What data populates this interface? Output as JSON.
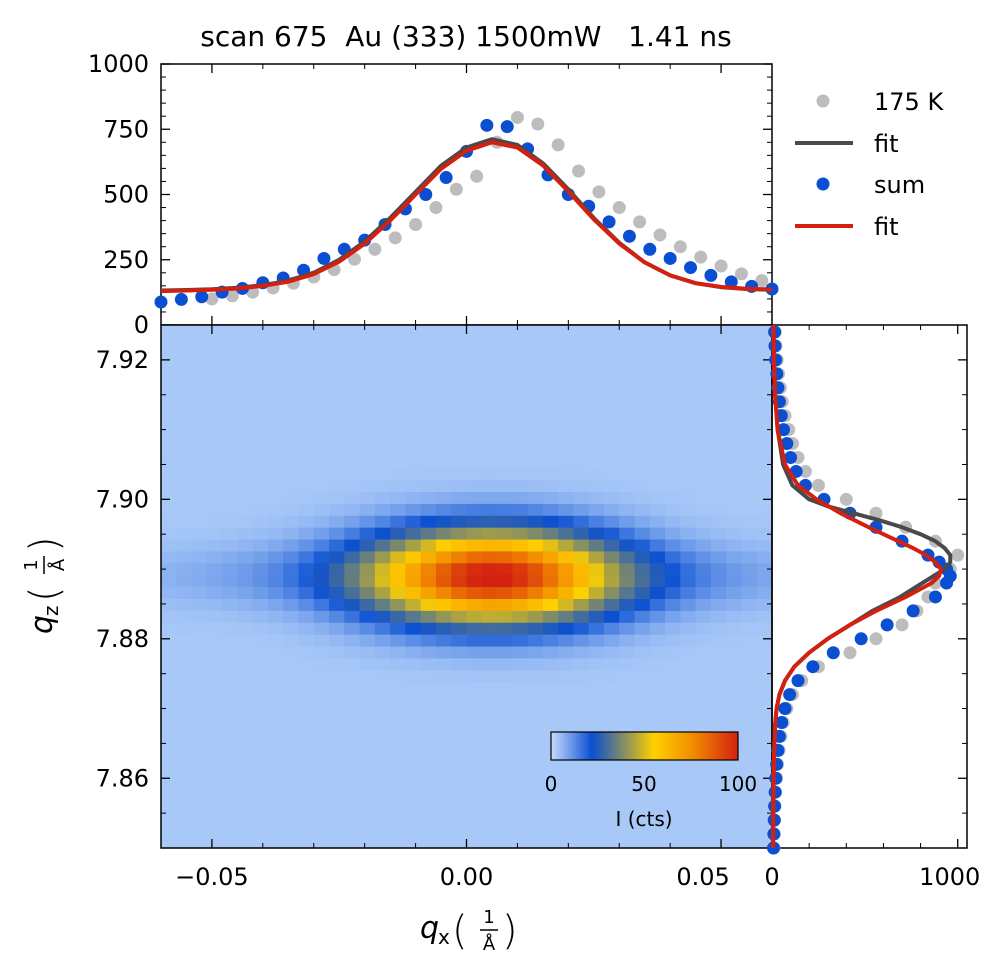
{
  "figure": {
    "title": "scan 675  Au (333) 1500mW   1.41 ns"
  },
  "colors": {
    "series_175K": "#bdbdbd",
    "fit_175K": "#4a4a4a",
    "series_sum": "#0a4fd1",
    "fit_sum": "#d42010",
    "map_background": "#a8c8f8"
  },
  "chart_data": [
    {
      "id": "top-profile",
      "type": "scatter",
      "x_range": [
        -0.06,
        0.06
      ],
      "y_range": [
        0,
        1000
      ],
      "y_ticks": [
        "0",
        "250",
        "500",
        "750",
        "1000"
      ],
      "legend": {
        "position": "right",
        "entries": [
          "175 K",
          "fit",
          "sum",
          "fit"
        ]
      },
      "series": [
        {
          "name": "175 K",
          "kind": "points",
          "x": [
            -0.05,
            -0.046,
            -0.042,
            -0.038,
            -0.034,
            -0.03,
            -0.026,
            -0.022,
            -0.018,
            -0.014,
            -0.01,
            -0.006,
            -0.002,
            0.002,
            0.006,
            0.01,
            0.014,
            0.018,
            0.022,
            0.026,
            0.03,
            0.034,
            0.038,
            0.042,
            0.046,
            0.05,
            0.054,
            0.058
          ],
          "y": [
            100,
            112,
            126,
            142,
            160,
            184,
            212,
            252,
            290,
            334,
            385,
            450,
            520,
            570,
            700,
            795,
            770,
            690,
            590,
            510,
            450,
            395,
            345,
            300,
            260,
            226,
            196,
            170
          ]
        },
        {
          "name": "fit",
          "kind": "line",
          "x": [
            -0.06,
            -0.055,
            -0.05,
            -0.045,
            -0.04,
            -0.035,
            -0.03,
            -0.025,
            -0.02,
            -0.015,
            -0.01,
            -0.005,
            0.0,
            0.005,
            0.01,
            0.015,
            0.02,
            0.025,
            0.03,
            0.035,
            0.04,
            0.045,
            0.05,
            0.055,
            0.06
          ],
          "y": [
            132,
            134,
            137,
            143,
            152,
            170,
            200,
            250,
            320,
            410,
            510,
            610,
            680,
            712,
            690,
            620,
            520,
            410,
            315,
            240,
            190,
            160,
            145,
            138,
            135
          ]
        },
        {
          "name": "sum",
          "kind": "points",
          "x": [
            -0.06,
            -0.056,
            -0.052,
            -0.048,
            -0.044,
            -0.04,
            -0.036,
            -0.032,
            -0.028,
            -0.024,
            -0.02,
            -0.016,
            -0.012,
            -0.008,
            -0.004,
            0.0,
            0.004,
            0.008,
            0.012,
            0.016,
            0.02,
            0.024,
            0.028,
            0.032,
            0.036,
            0.04,
            0.044,
            0.048,
            0.052,
            0.056,
            0.06
          ],
          "y": [
            88,
            98,
            108,
            126,
            140,
            162,
            180,
            210,
            255,
            290,
            325,
            385,
            445,
            500,
            565,
            665,
            765,
            760,
            675,
            575,
            500,
            455,
            395,
            340,
            290,
            255,
            220,
            190,
            165,
            148,
            138
          ]
        },
        {
          "name": "fit",
          "kind": "line",
          "x": [
            -0.06,
            -0.055,
            -0.05,
            -0.045,
            -0.04,
            -0.035,
            -0.03,
            -0.025,
            -0.02,
            -0.015,
            -0.01,
            -0.005,
            0.0,
            0.005,
            0.01,
            0.015,
            0.02,
            0.025,
            0.03,
            0.035,
            0.04,
            0.045,
            0.05,
            0.055,
            0.06
          ],
          "y": [
            130,
            132,
            135,
            140,
            150,
            166,
            195,
            243,
            312,
            400,
            500,
            598,
            668,
            700,
            680,
            612,
            512,
            405,
            312,
            240,
            190,
            160,
            146,
            139,
            136
          ]
        }
      ]
    },
    {
      "id": "heatmap",
      "type": "heatmap",
      "xlabel": "q_x (1/Å)",
      "ylabel": "q_z (1/Å)",
      "x_range": [
        -0.06,
        0.06
      ],
      "y_range": [
        7.85,
        7.925
      ],
      "x_ticks": [
        "−0.05",
        "0.00",
        "0.05"
      ],
      "y_ticks": [
        "7.86",
        "7.88",
        "7.90",
        "7.92"
      ],
      "peak": {
        "qx": 0.005,
        "qz": 7.889,
        "intensity": 92
      },
      "peak_width_qx": 0.016,
      "peak_width_qz": 0.0045,
      "background_intensity": 8,
      "colorbar": {
        "label": "I (cts)",
        "range": [
          0,
          100
        ],
        "ticks": [
          "0",
          "50",
          "100"
        ]
      }
    },
    {
      "id": "right-profile",
      "type": "line",
      "x_range": [
        0,
        1050
      ],
      "x_ticks": [
        "0",
        "1000"
      ],
      "y_range": [
        7.85,
        7.925
      ],
      "series": [
        {
          "name": "175 K",
          "kind": "points",
          "qz": [
            7.85,
            7.852,
            7.854,
            7.856,
            7.858,
            7.86,
            7.862,
            7.864,
            7.866,
            7.868,
            7.87,
            7.872,
            7.874,
            7.876,
            7.878,
            7.88,
            7.882,
            7.884,
            7.886,
            7.888,
            7.89,
            7.892,
            7.894,
            7.896,
            7.898,
            7.9,
            7.902,
            7.904,
            7.906,
            7.908,
            7.91,
            7.912,
            7.914,
            7.916,
            7.918,
            7.92,
            7.922,
            7.924
          ],
          "I": [
            10,
            12,
            14,
            16,
            20,
            25,
            30,
            38,
            48,
            60,
            80,
            110,
            160,
            250,
            420,
            560,
            700,
            780,
            840,
            880,
            960,
            1000,
            880,
            720,
            560,
            400,
            250,
            180,
            140,
            110,
            90,
            70,
            55,
            45,
            35,
            28,
            22,
            18
          ]
        },
        {
          "name": "fit",
          "kind": "line",
          "qz": [
            7.85,
            7.855,
            7.86,
            7.865,
            7.868,
            7.87,
            7.872,
            7.874,
            7.876,
            7.878,
            7.88,
            7.882,
            7.884,
            7.886,
            7.888,
            7.89,
            7.891,
            7.892,
            7.893,
            7.894,
            7.895,
            7.896,
            7.897,
            7.898,
            7.899,
            7.9,
            7.902,
            7.905,
            7.91,
            7.915,
            7.92,
            7.925
          ],
          "I": [
            5,
            6,
            8,
            12,
            18,
            25,
            40,
            70,
            120,
            200,
            300,
            420,
            540,
            690,
            810,
            930,
            960,
            960,
            930,
            880,
            800,
            700,
            580,
            440,
            300,
            200,
            110,
            60,
            30,
            18,
            12,
            8
          ]
        },
        {
          "name": "sum",
          "kind": "points",
          "qz": [
            7.85,
            7.852,
            7.854,
            7.856,
            7.858,
            7.86,
            7.862,
            7.864,
            7.866,
            7.868,
            7.87,
            7.872,
            7.874,
            7.876,
            7.878,
            7.88,
            7.882,
            7.884,
            7.886,
            7.888,
            7.889,
            7.89,
            7.891,
            7.892,
            7.894,
            7.896,
            7.898,
            7.9,
            7.902,
            7.904,
            7.906,
            7.908,
            7.91,
            7.912,
            7.914,
            7.916,
            7.918,
            7.92,
            7.922,
            7.924
          ],
          "I": [
            8,
            10,
            12,
            14,
            17,
            20,
            25,
            32,
            40,
            52,
            70,
            95,
            140,
            220,
            330,
            480,
            620,
            760,
            880,
            940,
            960,
            940,
            900,
            840,
            700,
            560,
            420,
            280,
            180,
            130,
            100,
            80,
            62,
            50,
            40,
            32,
            26,
            20,
            16,
            14
          ]
        },
        {
          "name": "fit",
          "kind": "line",
          "qz": [
            7.85,
            7.855,
            7.86,
            7.865,
            7.868,
            7.87,
            7.872,
            7.874,
            7.876,
            7.878,
            7.88,
            7.882,
            7.884,
            7.886,
            7.888,
            7.889,
            7.89,
            7.891,
            7.892,
            7.893,
            7.894,
            7.896,
            7.898,
            7.9,
            7.902,
            7.905,
            7.91,
            7.915,
            7.92,
            7.925
          ],
          "I": [
            6,
            7,
            9,
            13,
            18,
            25,
            40,
            70,
            120,
            200,
            300,
            420,
            560,
            720,
            860,
            900,
            910,
            880,
            830,
            760,
            680,
            520,
            370,
            240,
            140,
            70,
            30,
            16,
            10,
            7
          ]
        }
      ]
    }
  ]
}
